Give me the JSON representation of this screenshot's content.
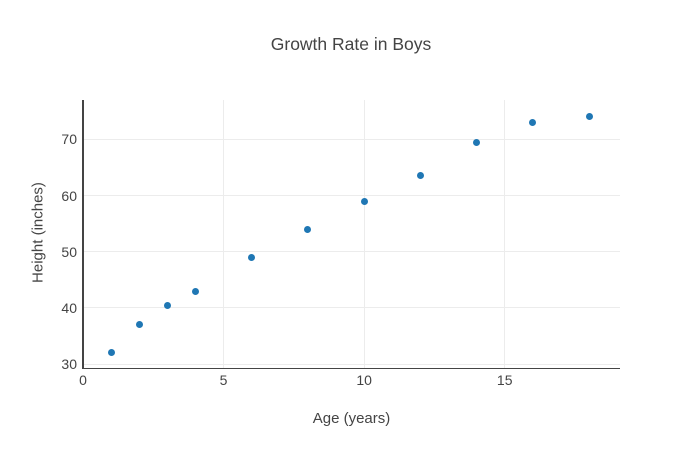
{
  "chart_data": {
    "type": "scatter",
    "title": "Growth Rate in Boys",
    "xlabel": "Age (years)",
    "ylabel": "Height (inches)",
    "x": [
      1,
      2,
      3,
      4,
      6,
      8,
      10,
      12,
      14,
      16,
      18
    ],
    "y": [
      32,
      37,
      40.5,
      43,
      49,
      54,
      59,
      63.5,
      69.5,
      73,
      74
    ],
    "xticks": [
      0,
      5,
      10,
      15
    ],
    "yticks": [
      30,
      40,
      50,
      60,
      70
    ],
    "xlim": [
      0,
      19.1
    ],
    "ylim": [
      29.3,
      77.0
    ],
    "grid": true,
    "legend_position": "none",
    "marker_color": "#1f77b4",
    "grid_color": "#ececec",
    "axis_line_color": "#444444",
    "text_color": "#444444",
    "background_color": "#ffffff"
  }
}
